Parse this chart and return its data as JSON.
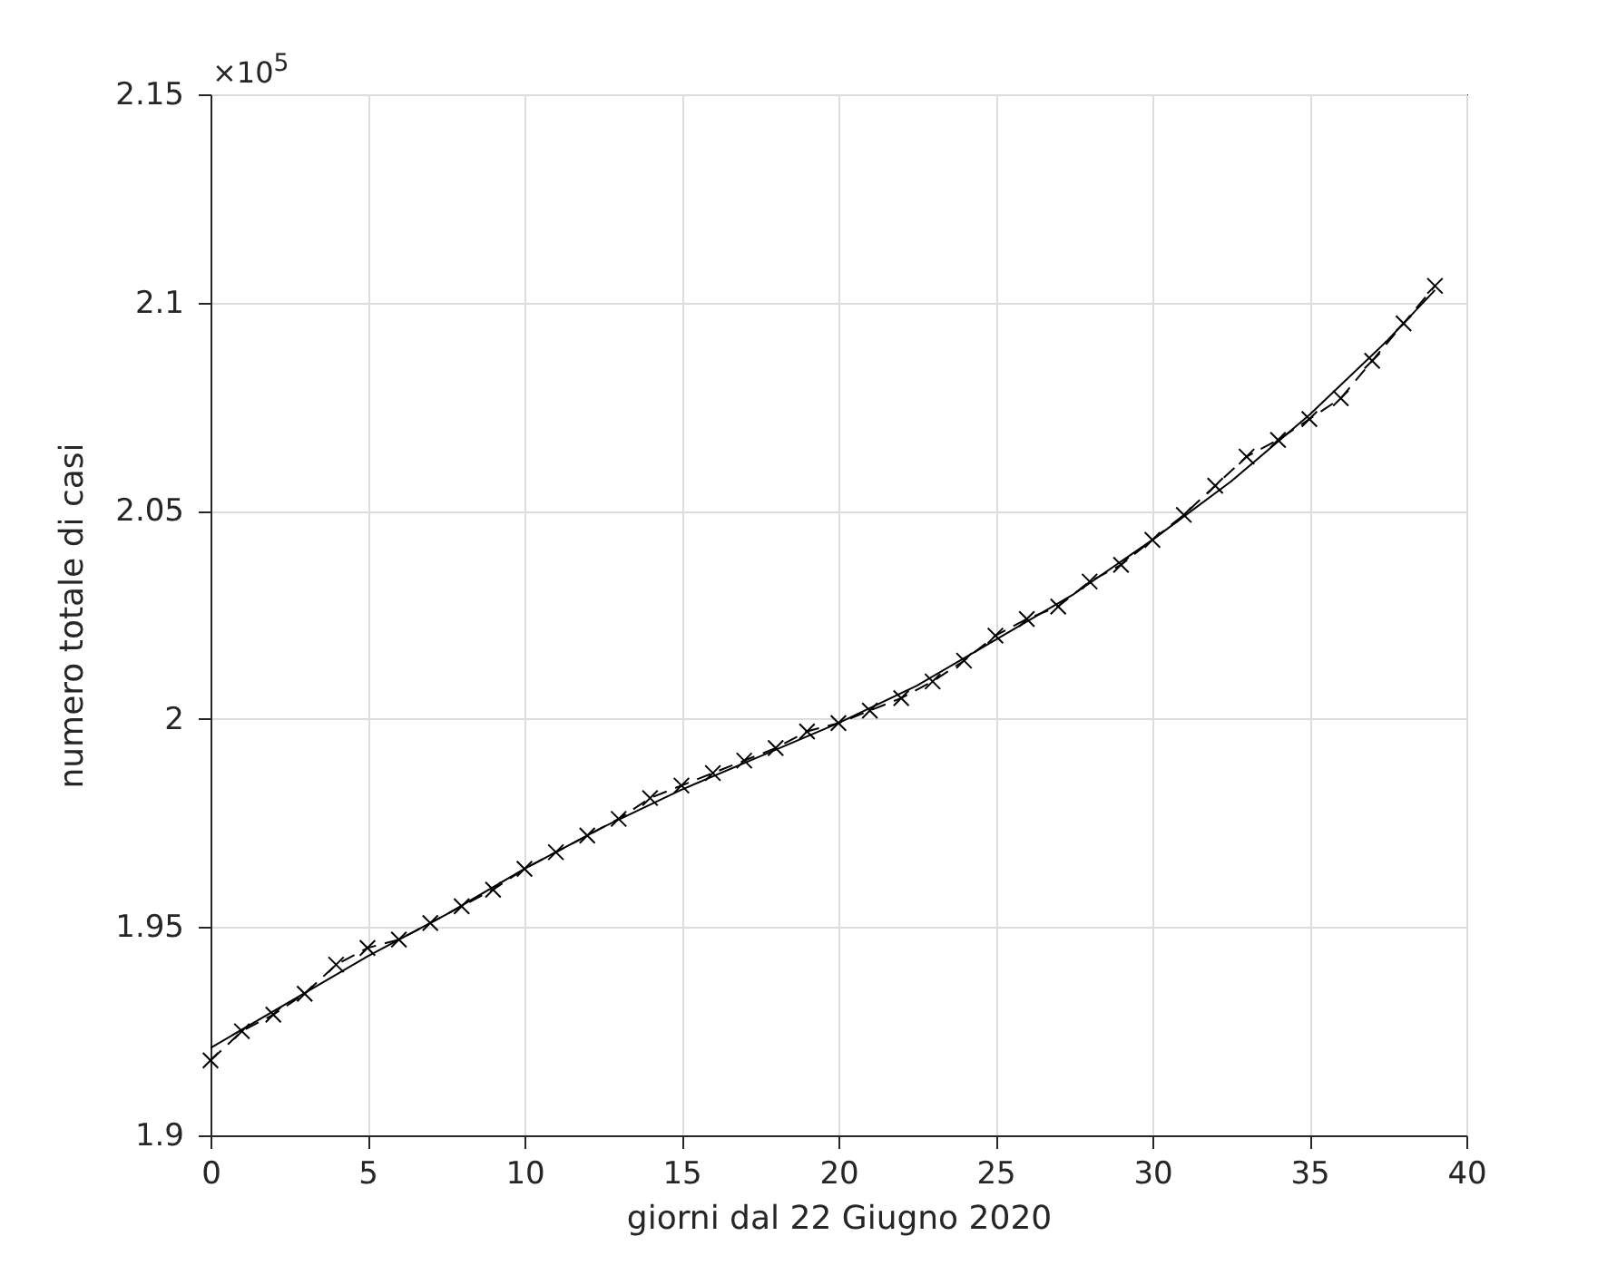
{
  "chart_data": {
    "type": "line",
    "xlabel": "giorni dal 22 Giugno 2020",
    "ylabel": "numero totale di casi",
    "annotations": [
      "×10$^{5}$"
    ],
    "x": [
      0,
      1,
      2,
      3,
      4,
      5,
      6,
      7,
      8,
      9,
      10,
      11,
      12,
      13,
      14,
      15,
      16,
      17,
      18,
      19,
      20,
      21,
      22,
      23,
      24,
      25,
      26,
      27,
      28,
      29,
      30,
      31,
      32,
      33,
      34,
      35,
      36,
      37,
      38,
      39
    ],
    "series": [
      {
        "color": "#000000",
        "marker": "cross",
        "line_style": "dashed",
        "values": [
          1.918,
          1.925,
          1.929,
          1.934,
          1.941,
          1.945,
          1.947,
          1.951,
          1.955,
          1.959,
          1.964,
          1.968,
          1.972,
          1.976,
          1.981,
          1.984,
          1.987,
          1.99,
          1.993,
          1.997,
          1.999,
          2.002,
          2.005,
          2.009,
          2.014,
          2.02,
          2.024,
          2.027,
          2.033,
          2.037,
          2.043,
          2.049,
          2.056,
          2.063,
          2.067,
          2.072,
          2.077,
          2.086,
          2.095,
          2.104
        ]
      },
      {
        "color": "#000000",
        "marker": "none",
        "line_style": "solid",
        "x": [
          0,
          2.5,
          5,
          7.5,
          10,
          12.5,
          15,
          17.5,
          20,
          22.5,
          25,
          27.5,
          30,
          32.5,
          35,
          37.5,
          39
        ],
        "values": [
          1.921,
          1.932,
          1.943,
          1.953,
          1.964,
          1.974,
          1.983,
          1.991,
          1.999,
          2.008,
          2.019,
          2.03,
          2.043,
          2.057,
          2.073,
          2.091,
          2.103
        ]
      }
    ],
    "xlim": [
      0,
      40
    ],
    "xticks": [
      0,
      5,
      10,
      15,
      20,
      25,
      30,
      35,
      40
    ],
    "ylim": [
      1.9,
      2.15
    ],
    "yticks": [
      1.9,
      1.95,
      2,
      2.05,
      2.1,
      2.15
    ],
    "grid": true
  }
}
